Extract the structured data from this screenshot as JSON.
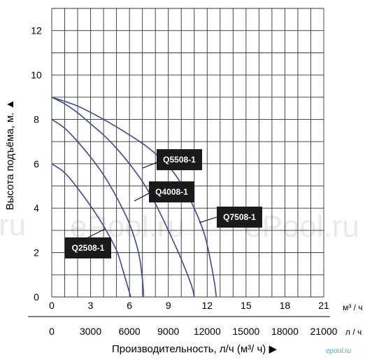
{
  "chart_data": {
    "type": "line",
    "ylabel": "Высота подъёма, м. ▲",
    "xlabel": "Производительность, л/ч (м³/ ч) ▶",
    "x_unit_top": "м³ / ч",
    "x_unit_bottom": "л / ч",
    "xlim": [
      0,
      21
    ],
    "ylim": [
      0,
      13
    ],
    "x_ticks_m3h": [
      "0",
      "3",
      "6",
      "9",
      "12",
      "15",
      "18",
      "21"
    ],
    "x_ticks_lh": [
      "0",
      "3000",
      "6000",
      "9000",
      "12000",
      "15000",
      "18000",
      "21000"
    ],
    "y_ticks": [
      "0",
      "2",
      "4",
      "6",
      "8",
      "10",
      "12"
    ],
    "grid": true,
    "series": [
      {
        "name": "Q2508-1",
        "points": [
          [
            0,
            6.0
          ],
          [
            1,
            5.6
          ],
          [
            2,
            4.9
          ],
          [
            3,
            4.1
          ],
          [
            4,
            3.2
          ],
          [
            5,
            2.1
          ],
          [
            5.5,
            1.2
          ],
          [
            5.9,
            0.4
          ],
          [
            6.1,
            0
          ]
        ]
      },
      {
        "name": "Q4008-1",
        "points": [
          [
            0,
            8.0
          ],
          [
            1,
            7.6
          ],
          [
            2,
            7.0
          ],
          [
            3,
            6.3
          ],
          [
            4,
            5.5
          ],
          [
            5,
            4.5
          ],
          [
            6,
            3.3
          ],
          [
            6.7,
            2.0
          ],
          [
            7.0,
            0.8
          ],
          [
            7.1,
            0
          ]
        ]
      },
      {
        "name": "Q5508-1",
        "points": [
          [
            0,
            9.0
          ],
          [
            1,
            8.7
          ],
          [
            2,
            8.3
          ],
          [
            3,
            7.8
          ],
          [
            4,
            7.3
          ],
          [
            5,
            6.7
          ],
          [
            6,
            6.0
          ],
          [
            7,
            5.2
          ],
          [
            8,
            4.2
          ],
          [
            9,
            3.0
          ],
          [
            10,
            1.7
          ],
          [
            10.8,
            0.5
          ],
          [
            11,
            0
          ]
        ]
      },
      {
        "name": "Q7508-1",
        "points": [
          [
            0,
            9.0
          ],
          [
            2,
            8.6
          ],
          [
            4,
            8.0
          ],
          [
            6,
            7.3
          ],
          [
            7.5,
            6.7
          ],
          [
            9,
            5.9
          ],
          [
            10,
            5.1
          ],
          [
            11,
            4.0
          ],
          [
            11.8,
            2.8
          ],
          [
            12.3,
            1.5
          ],
          [
            12.6,
            0.5
          ],
          [
            12.7,
            0
          ]
        ]
      }
    ],
    "tags": [
      {
        "label": "Q2508-1"
      },
      {
        "label": "Q4008-1"
      },
      {
        "label": "Q5508-1"
      },
      {
        "label": "Q7508-1"
      }
    ]
  },
  "watermarks": [
    "ru",
    "ePool.ru",
    "ePool.ru"
  ],
  "logo": "epool.ru"
}
